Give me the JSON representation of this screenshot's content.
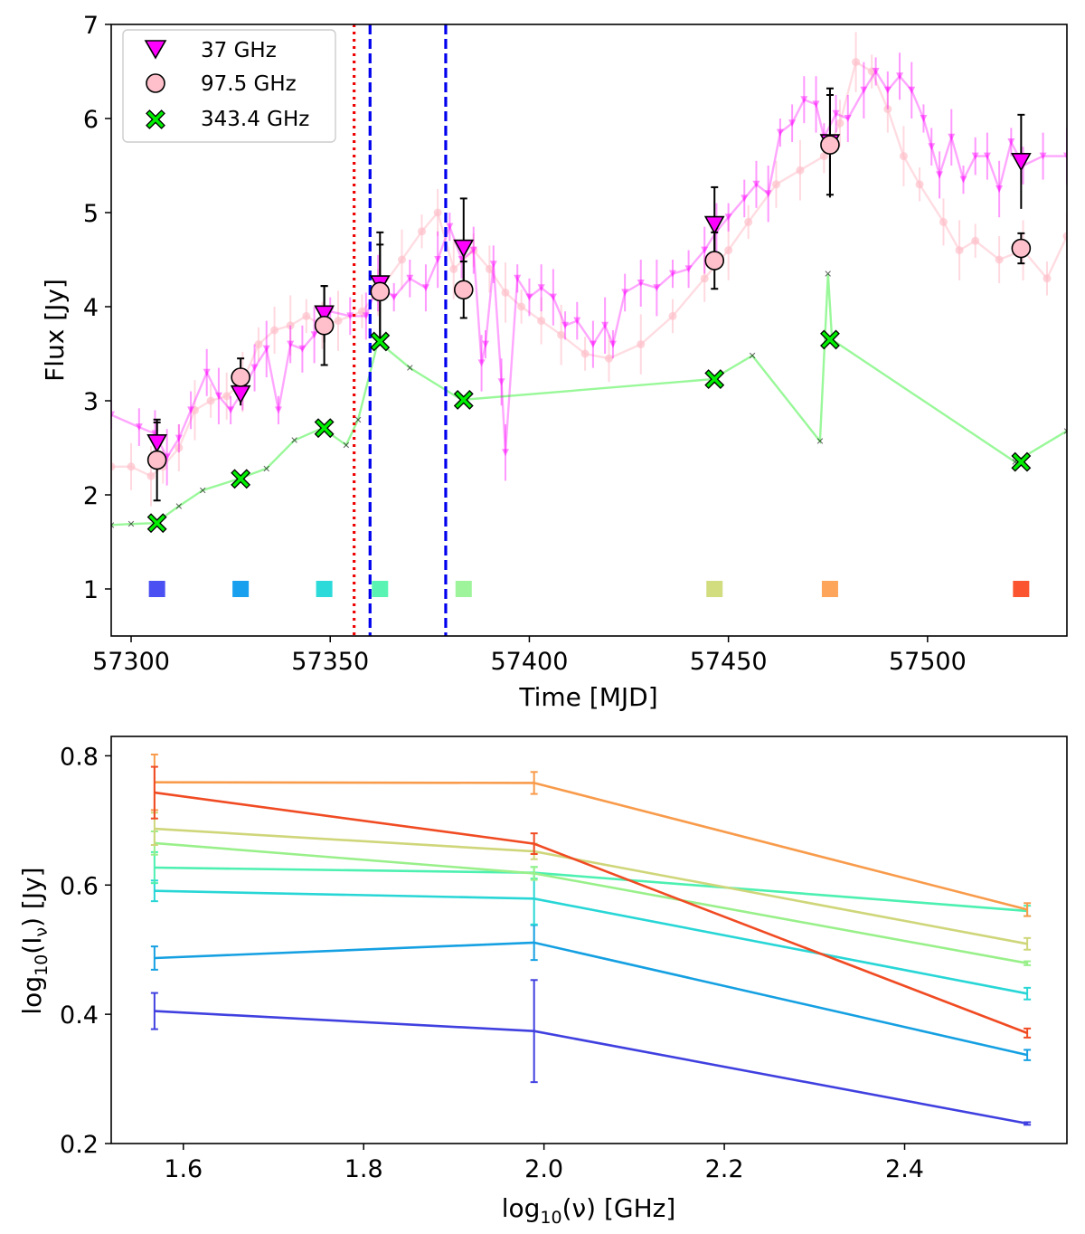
{
  "chart_data": [
    {
      "type": "scatter",
      "xlabel": "Time [MJD]",
      "ylabel": "Flux [Jy]",
      "xlim": [
        57295,
        57535
      ],
      "ylim": [
        0.5,
        7
      ],
      "xticks": [
        "57300",
        "57350",
        "57400",
        "57450",
        "57500"
      ],
      "yticks": [
        "1",
        "2",
        "3",
        "4",
        "5",
        "6",
        "7"
      ],
      "legend_position": "top-left",
      "legend": [
        "37 GHz",
        "97.5 GHz",
        "343.4 GHz"
      ],
      "colors": {
        "37 GHz": "#ff00ff",
        "97.5 GHz": "#ffc0cb",
        "343.4 GHz": "#00ee00"
      },
      "vertical_lines": [
        {
          "x": 57356,
          "style": "dotted",
          "color": "#ee0000"
        },
        {
          "x": 57360,
          "style": "dashed",
          "color": "#0000ee"
        },
        {
          "x": 57379,
          "style": "dashed",
          "color": "#0000ee"
        }
      ],
      "epochs": [
        {
          "x": 57306.5,
          "color": "#4a50f2",
          "f37": 2.55,
          "e37": 0.22,
          "f97": 2.37,
          "e97": 0.43,
          "f343": 1.7
        },
        {
          "x": 57327.5,
          "color": "#18a0ef",
          "f37": 3.07,
          "e37": 0.12,
          "f97": 3.25,
          "e97": 0.2,
          "f343": 2.17
        },
        {
          "x": 57348.5,
          "color": "#2cdada",
          "f37": 3.92,
          "e37": 0.3,
          "f97": 3.8,
          "e97": 0.42,
          "f343": 2.71
        },
        {
          "x": 57362.5,
          "color": "#59f4b3",
          "f37": 4.24,
          "e37": 0.55,
          "f97": 4.16,
          "e97": 0.5,
          "f343": 3.63
        },
        {
          "x": 57383.5,
          "color": "#9ef49a",
          "f37": 4.62,
          "e37": 0.53,
          "f97": 4.18,
          "e97": 0.3,
          "f343": 3.01
        },
        {
          "x": 57446.5,
          "color": "#d2dd80",
          "f37": 4.87,
          "e37": 0.4,
          "f97": 4.49,
          "e97": 0.3,
          "f343": 3.23
        },
        {
          "x": 57475.5,
          "color": "#fda55a",
          "f37": 5.74,
          "e37": 0.58,
          "f97": 5.72,
          "e97": 0.53,
          "f343": 3.65
        },
        {
          "x": 57523.5,
          "color": "#fa5530",
          "f37": 5.54,
          "e37": 0.5,
          "f97": 4.62,
          "e97": 0.16,
          "f343": 2.35
        }
      ],
      "marker_y": 1,
      "curve_37": [
        [
          57295,
          2.85
        ],
        [
          57302,
          2.72
        ],
        [
          57306,
          2.65
        ],
        [
          57309,
          2.4
        ],
        [
          57312,
          2.6
        ],
        [
          57315,
          2.9
        ],
        [
          57319,
          3.3
        ],
        [
          57322,
          3.05
        ],
        [
          57325,
          2.9
        ],
        [
          57328,
          3.1
        ],
        [
          57331,
          3.35
        ],
        [
          57334,
          3.55
        ],
        [
          57337,
          2.9
        ],
        [
          57340,
          3.6
        ],
        [
          57343,
          3.55
        ],
        [
          57346,
          3.7
        ],
        [
          57350,
          3.95
        ],
        [
          57355,
          3.9
        ],
        [
          57359,
          3.9
        ],
        [
          57362,
          4.25
        ],
        [
          57366,
          4.1
        ],
        [
          57370,
          4.3
        ],
        [
          57374,
          4.2
        ],
        [
          57377,
          4.5
        ],
        [
          57380,
          4.85
        ],
        [
          57383,
          4.5
        ],
        [
          57386,
          4.6
        ],
        [
          57388,
          3.4
        ],
        [
          57389,
          3.6
        ],
        [
          57391,
          4.45
        ],
        [
          57393,
          3.2
        ],
        [
          57394,
          2.45
        ],
        [
          57397,
          4.3
        ],
        [
          57400,
          4.1
        ],
        [
          57403,
          4.2
        ],
        [
          57406,
          4.1
        ],
        [
          57409,
          3.8
        ],
        [
          57412,
          3.85
        ],
        [
          57416,
          3.6
        ],
        [
          57419,
          3.8
        ],
        [
          57421,
          3.6
        ],
        [
          57424,
          4.15
        ],
        [
          57428,
          4.25
        ],
        [
          57432,
          4.2
        ],
        [
          57436,
          4.35
        ],
        [
          57440,
          4.4
        ],
        [
          57444,
          4.6
        ],
        [
          57447,
          4.8
        ],
        [
          57450,
          4.95
        ],
        [
          57454,
          5.15
        ],
        [
          57457,
          5.3
        ],
        [
          57460,
          5.2
        ],
        [
          57463,
          5.85
        ],
        [
          57466,
          5.95
        ],
        [
          57469,
          6.2
        ],
        [
          57472,
          6.15
        ],
        [
          57474,
          5.8
        ],
        [
          57477,
          6.05
        ],
        [
          57480,
          6.0
        ],
        [
          57484,
          6.3
        ],
        [
          57487,
          6.5
        ],
        [
          57490,
          6.3
        ],
        [
          57493,
          6.45
        ],
        [
          57496,
          6.3
        ],
        [
          57499,
          6.0
        ],
        [
          57501,
          5.7
        ],
        [
          57503,
          5.4
        ],
        [
          57506,
          5.8
        ],
        [
          57509,
          5.35
        ],
        [
          57512,
          5.6
        ],
        [
          57515,
          5.6
        ],
        [
          57518,
          5.25
        ],
        [
          57521,
          5.75
        ],
        [
          57524,
          5.5
        ],
        [
          57529,
          5.6
        ],
        [
          57535,
          5.6
        ]
      ],
      "curve_97": [
        [
          57295,
          2.3
        ],
        [
          57300,
          2.3
        ],
        [
          57305,
          2.2
        ],
        [
          57308,
          2.3
        ],
        [
          57312,
          2.5
        ],
        [
          57316,
          2.9
        ],
        [
          57320,
          3.0
        ],
        [
          57324,
          3.05
        ],
        [
          57328,
          3.2
        ],
        [
          57332,
          3.6
        ],
        [
          57336,
          3.75
        ],
        [
          57340,
          3.8
        ],
        [
          57344,
          3.9
        ],
        [
          57348,
          3.8
        ],
        [
          57352,
          3.85
        ],
        [
          57358,
          3.95
        ],
        [
          57362,
          4.15
        ],
        [
          57368,
          4.5
        ],
        [
          57373,
          4.8
        ],
        [
          57377,
          5.0
        ],
        [
          57381,
          4.4
        ],
        [
          57386,
          4.6
        ],
        [
          57390,
          4.4
        ],
        [
          57394,
          4.15
        ],
        [
          57398,
          4.0
        ],
        [
          57403,
          3.85
        ],
        [
          57408,
          3.7
        ],
        [
          57414,
          3.5
        ],
        [
          57420,
          3.45
        ],
        [
          57428,
          3.6
        ],
        [
          57436,
          3.9
        ],
        [
          57444,
          4.3
        ],
        [
          57450,
          4.6
        ],
        [
          57455,
          4.9
        ],
        [
          57462,
          5.3
        ],
        [
          57468,
          5.45
        ],
        [
          57474,
          5.6
        ],
        [
          57478,
          5.95
        ],
        [
          57482,
          6.6
        ],
        [
          57486,
          6.5
        ],
        [
          57490,
          6.1
        ],
        [
          57494,
          5.6
        ],
        [
          57498,
          5.3
        ],
        [
          57504,
          4.9
        ],
        [
          57508,
          4.6
        ],
        [
          57512,
          4.7
        ],
        [
          57518,
          4.5
        ],
        [
          57524,
          4.6
        ],
        [
          57530,
          4.3
        ],
        [
          57535,
          4.75
        ]
      ],
      "curve_343": [
        [
          57295,
          1.68
        ],
        [
          57300,
          1.69
        ],
        [
          57306,
          1.7
        ],
        [
          57312,
          1.88
        ],
        [
          57318,
          2.05
        ],
        [
          57327,
          2.17
        ],
        [
          57334,
          2.28
        ],
        [
          57341,
          2.58
        ],
        [
          57348,
          2.71
        ],
        [
          57354,
          2.53
        ],
        [
          57357,
          2.8
        ],
        [
          57362,
          3.63
        ],
        [
          57370,
          3.35
        ],
        [
          57383,
          3.01
        ],
        [
          57446,
          3.23
        ],
        [
          57456,
          3.48
        ],
        [
          57473,
          2.57
        ],
        [
          57475,
          4.35
        ],
        [
          57476,
          3.65
        ],
        [
          57522,
          2.35
        ],
        [
          57535,
          2.68
        ]
      ]
    },
    {
      "type": "line",
      "xlabel": "log10(ν) [GHz]",
      "ylabel": "log10(Iν) [Jy]",
      "xlim": [
        1.52,
        2.58
      ],
      "ylim": [
        0.2,
        0.83
      ],
      "xticks": [
        "1.6",
        "1.8",
        "2.0",
        "2.2",
        "2.4"
      ],
      "yticks": [
        "0.2",
        "0.4",
        "0.6",
        "0.8"
      ],
      "x": [
        1.568,
        1.989,
        2.536
      ],
      "series": [
        {
          "color": "#4040e0",
          "values": [
            0.405,
            0.374,
            0.231
          ],
          "errors": [
            0.028,
            0.079,
            0.002
          ]
        },
        {
          "color": "#15a0e2",
          "values": [
            0.487,
            0.511,
            0.337
          ],
          "errors": [
            0.018,
            0.027,
            0.008
          ]
        },
        {
          "color": "#28d6d6",
          "values": [
            0.591,
            0.579,
            0.432
          ],
          "errors": [
            0.016,
            0.04,
            0.009
          ]
        },
        {
          "color": "#4cf0b0",
          "values": [
            0.627,
            0.619,
            0.56
          ],
          "errors": [
            0.024,
            0.009,
            0.008
          ]
        },
        {
          "color": "#99f08a",
          "values": [
            0.665,
            0.618,
            0.479
          ],
          "errors": [
            0.018,
            0.01,
            0.003
          ]
        },
        {
          "color": "#cfd67a",
          "values": [
            0.687,
            0.652,
            0.509
          ],
          "errors": [
            0.025,
            0.012,
            0.009
          ]
        },
        {
          "color": "#f89b4b",
          "values": [
            0.759,
            0.758,
            0.562
          ],
          "errors": [
            0.043,
            0.017,
            0.01
          ]
        },
        {
          "color": "#f04b23",
          "values": [
            0.743,
            0.664,
            0.371
          ],
          "errors": [
            0.04,
            0.016,
            0.007
          ]
        }
      ]
    }
  ]
}
